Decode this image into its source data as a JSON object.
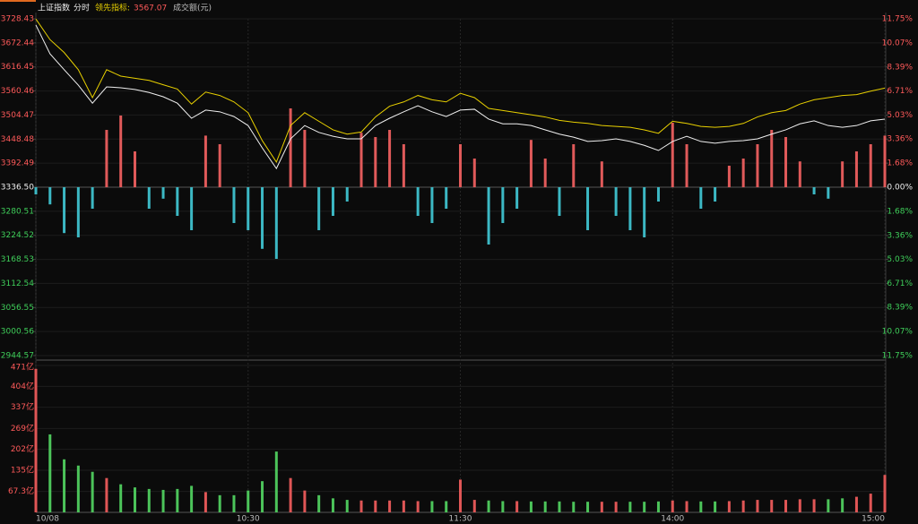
{
  "header": {
    "title": "上证指数",
    "mode": "分时",
    "lead_label": "领先指标:",
    "lead_value": 3567.07,
    "volume_label": "成交额(元)"
  },
  "chart_data": [
    {
      "type": "line",
      "ylim": [
        2944.57,
        3728.43
      ],
      "yticks": [
        3728.43,
        3672.44,
        3616.45,
        3560.46,
        3504.47,
        3448.48,
        3392.49,
        {
          "value": 3336.5,
          "label": "3336.50"
        },
        3280.51,
        3224.52,
        3168.53,
        3112.54,
        3056.55,
        3000.56,
        2944.57
      ],
      "y2lim": [
        -11.75,
        11.75
      ],
      "y2ticks": [
        {
          "value": 11.75,
          "label": "11.75%"
        },
        {
          "value": 10.07,
          "label": "10.07%"
        },
        {
          "value": 8.39,
          "label": "8.39%"
        },
        {
          "value": 6.71,
          "label": "6.71%"
        },
        {
          "value": 5.03,
          "label": "5.03%"
        },
        {
          "value": 3.36,
          "label": "3.36%"
        },
        {
          "value": 1.68,
          "label": "1.68%"
        },
        {
          "value": 0,
          "label": "0.00%"
        },
        {
          "value": -1.68,
          "label": "1.68%"
        },
        {
          "value": -3.36,
          "label": "3.36%"
        },
        {
          "value": -5.03,
          "label": "5.03%"
        },
        {
          "value": -6.71,
          "label": "6.71%"
        },
        {
          "value": -8.39,
          "label": "8.39%"
        },
        {
          "value": -10.07,
          "label": "10.07%"
        },
        {
          "value": -11.75,
          "label": "11.75%"
        }
      ],
      "series": [
        {
          "color": "#f0f0f0",
          "values": [
            3714,
            3647,
            3610,
            3574,
            3532,
            3570,
            3568,
            3564,
            3557,
            3547,
            3532,
            3497,
            3516,
            3512,
            3501,
            3480,
            3428,
            3380,
            3449,
            3480,
            3464,
            3455,
            3449,
            3449,
            3480,
            3497,
            3512,
            3526,
            3512,
            3501,
            3516,
            3518,
            3495,
            3484,
            3484,
            3480,
            3470,
            3460,
            3453,
            3443,
            3445,
            3449,
            3443,
            3434,
            3422,
            3443,
            3455,
            3443,
            3439,
            3443,
            3445,
            3449,
            3460,
            3470,
            3484,
            3491,
            3480,
            3476,
            3480,
            3491,
            3495
          ]
        },
        {
          "color": "#e8d000",
          "values": [
            3728,
            3680,
            3650,
            3610,
            3545,
            3610,
            3595,
            3590,
            3585,
            3575,
            3565,
            3530,
            3558,
            3550,
            3535,
            3510,
            3445,
            3395,
            3480,
            3510,
            3490,
            3470,
            3460,
            3465,
            3500,
            3525,
            3535,
            3550,
            3540,
            3535,
            3555,
            3545,
            3520,
            3515,
            3510,
            3505,
            3500,
            3492,
            3488,
            3485,
            3480,
            3478,
            3476,
            3470,
            3462,
            3490,
            3485,
            3478,
            3476,
            3478,
            3485,
            3500,
            3510,
            3515,
            3530,
            3540,
            3545,
            3550,
            3552,
            3560,
            3567.07
          ]
        },
        {
          "type": "bar",
          "axis": "y2",
          "up_color": "#e05a5a",
          "down_color": "#3cb8c4",
          "values": [
            -0.5,
            -1.2,
            -3.2,
            -3.5,
            -1.5,
            4.0,
            5.0,
            2.5,
            -1.5,
            -0.8,
            -2.0,
            -3.0,
            3.6,
            3.0,
            -2.5,
            -3.0,
            -4.3,
            -5.0,
            5.5,
            4.0,
            -3.0,
            -2.0,
            -1.0,
            3.8,
            3.5,
            4.0,
            3.0,
            -2.0,
            -2.5,
            -1.5,
            3.0,
            2.0,
            -4.0,
            -2.5,
            -1.5,
            3.3,
            2.0,
            -2.0,
            3.0,
            -3.0,
            1.8,
            -2.0,
            -3.0,
            -3.5,
            -1.0,
            4.5,
            3.0,
            -1.5,
            -1.0,
            1.5,
            2.0,
            3.0,
            4.0,
            3.5,
            1.8,
            -0.5,
            -0.8,
            1.8,
            2.5,
            3.0,
            3.6
          ]
        }
      ]
    },
    {
      "type": "bar",
      "xlim": [
        0,
        60
      ],
      "xticks": [
        {
          "value": 0,
          "label": "10/08"
        },
        {
          "value": 15,
          "label": "10:30"
        },
        {
          "value": 30,
          "label": "11:30"
        },
        {
          "value": 45,
          "label": "14:00"
        },
        {
          "value": 60,
          "label": "15:00"
        }
      ],
      "ylim": [
        0,
        471
      ],
      "yticks": [
        {
          "value": 471,
          "label": "471亿"
        },
        {
          "value": 404,
          "label": "404亿"
        },
        {
          "value": 337,
          "label": "337亿"
        },
        {
          "value": 269,
          "label": "269亿"
        },
        {
          "value": 202,
          "label": "202亿"
        },
        {
          "value": 135,
          "label": "135亿"
        },
        {
          "value": 67.3,
          "label": "67.3亿"
        }
      ],
      "up_color": "#e05656",
      "down_color": "#4cc45a",
      "values": [
        460,
        250,
        170,
        150,
        130,
        110,
        90,
        80,
        75,
        72,
        75,
        85,
        65,
        55,
        55,
        70,
        100,
        195,
        110,
        70,
        55,
        45,
        40,
        38,
        38,
        38,
        38,
        36,
        36,
        36,
        105,
        40,
        38,
        36,
        36,
        35,
        35,
        35,
        34,
        34,
        34,
        34,
        34,
        34,
        35,
        38,
        36,
        35,
        35,
        36,
        38,
        40,
        40,
        40,
        42,
        42,
        42,
        45,
        50,
        60,
        120
      ]
    }
  ]
}
